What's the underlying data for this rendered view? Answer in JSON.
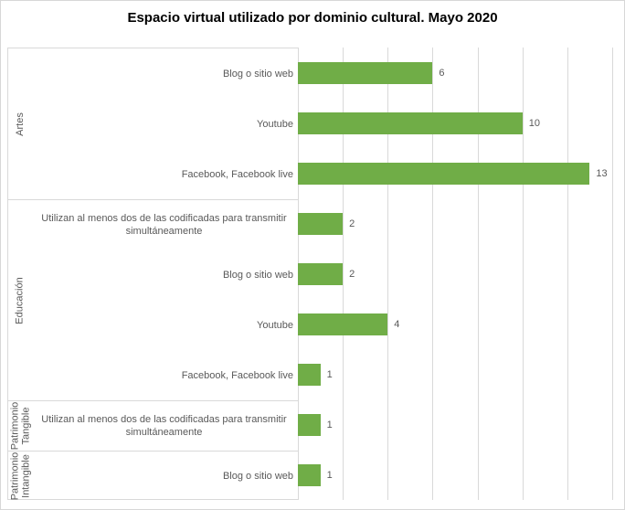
{
  "title": "Espacio virtual utilizado por dominio cultural. Mayo 2020",
  "colors": {
    "bar": "#70AD47",
    "gridline": "#d9d9d9",
    "label_text": "#595959",
    "title_text": "#000000"
  },
  "chart_data": {
    "type": "bar",
    "orientation": "horizontal",
    "title": "Espacio virtual utilizado por dominio cultural. Mayo 2020",
    "xlabel": "",
    "ylabel": "",
    "axis_range": [
      0,
      14
    ],
    "gridline_step": 2,
    "grid": true,
    "legend": false,
    "data_labels": true,
    "groups": [
      {
        "label": "Artes",
        "items": [
          {
            "category": "Blog o sitio web",
            "value": 6
          },
          {
            "category": "Youtube",
            "value": 10
          },
          {
            "category": "Facebook, Facebook live",
            "value": 13
          }
        ]
      },
      {
        "label": "Educación",
        "items": [
          {
            "category": "Utilizan al menos dos de las codificadas para transmitir simultáneamente",
            "value": 2
          },
          {
            "category": "Blog o sitio web",
            "value": 2
          },
          {
            "category": "Youtube",
            "value": 4
          },
          {
            "category": "Facebook, Facebook live",
            "value": 1
          }
        ]
      },
      {
        "label": "Patrimonio Tangible",
        "items": [
          {
            "category": "Utilizan al menos dos de las codificadas para transmitir simultáneamente",
            "value": 1
          }
        ]
      },
      {
        "label": "Patrimonio Intangible",
        "items": [
          {
            "category": "Blog o sitio web",
            "value": 1
          }
        ]
      }
    ]
  }
}
